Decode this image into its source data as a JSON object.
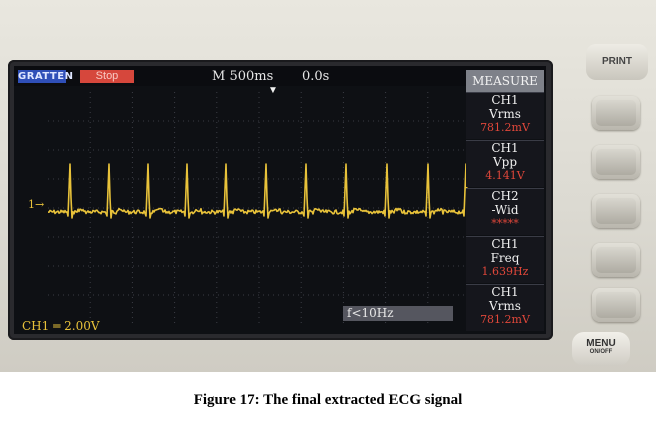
{
  "scope": {
    "brand": "GRATTEN",
    "run_state": "Stop",
    "timebase": "M 500ms",
    "trigger_delay": "0.0s",
    "channel_marker": "1",
    "channel_scale": "CH1  ═ 2.00V",
    "filter_label": "f<10Hz",
    "trace_color": "#e8c23a",
    "measure": {
      "title": "MEASURE",
      "items": [
        {
          "channel": "CH1",
          "name": "Vrms",
          "value": "781.2mV"
        },
        {
          "channel": "CH1",
          "name": "Vpp",
          "value": "4.141V"
        },
        {
          "channel": "CH2",
          "name": "-Wid",
          "value": "*****"
        },
        {
          "channel": "CH1",
          "name": "Freq",
          "value": "1.639Hz"
        },
        {
          "channel": "CH1",
          "name": "Vrms",
          "value": "781.2mV"
        }
      ]
    }
  },
  "buttons": {
    "print": "PRINT",
    "menu": "MENU",
    "menu_sub": "ON/OFF"
  },
  "caption": "Figure 17: The final extracted ECG signal"
}
